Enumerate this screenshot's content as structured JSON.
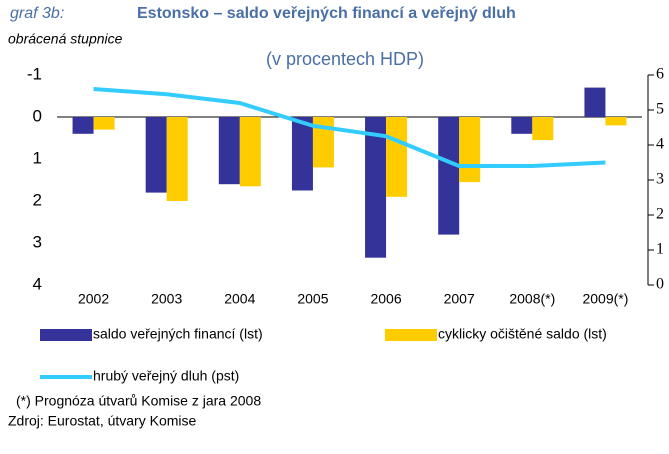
{
  "chart_data": {
    "type": "bar",
    "label": "graf 3b:",
    "title": "Estonsko – saldo veřejných financí a veřejný dluh",
    "subtitle": "(v procentech HDP)",
    "ylabel": "obrácená stupnice",
    "categories": [
      "2002",
      "2003",
      "2004",
      "2005",
      "2006",
      "2007",
      "2008(*)",
      "2009(*)"
    ],
    "series": [
      {
        "name": "saldo veřejných financí  (lst)",
        "color": "#333399",
        "type": "bar",
        "values": [
          0.4,
          1.8,
          1.6,
          1.75,
          3.35,
          2.8,
          0.4,
          -0.7
        ]
      },
      {
        "name": "cyklicky očištěné saldo (lst)",
        "color": "#ffcc00",
        "type": "bar",
        "values": [
          0.3,
          2.0,
          1.65,
          1.2,
          1.9,
          1.55,
          0.55,
          0.2
        ]
      },
      {
        "name": "hrubý veřejný dluh (pst)",
        "color": "#33ccff",
        "type": "line",
        "axis": "y2",
        "values": [
          5.6,
          5.45,
          5.2,
          4.55,
          4.25,
          3.4,
          3.4,
          3.5
        ]
      }
    ],
    "ylim": [
      -1,
      4
    ],
    "yticks": [
      -1,
      0,
      1,
      2,
      3,
      4
    ],
    "y_inverted": true,
    "y2lim": [
      0,
      6
    ],
    "y2ticks": [
      0,
      1,
      2,
      3,
      4,
      5,
      6
    ],
    "note": "(*) Prognóza útvarů Komise z jara 2008",
    "source": "Zdroj: Eurostat, útvary Komise"
  }
}
